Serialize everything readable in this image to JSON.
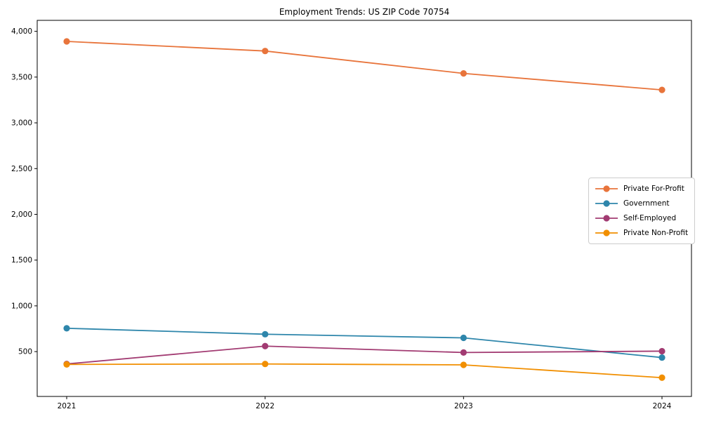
{
  "title": "Employment Trends: US ZIP Code 70754",
  "chart_data": {
    "type": "line",
    "title": "Employment Trends: US ZIP Code 70754",
    "categories": [
      "2021",
      "2022",
      "2023",
      "2024"
    ],
    "series": [
      {
        "name": "Private For-Profit",
        "color": "#E8743B",
        "values": [
          3890,
          3785,
          3540,
          3360
        ]
      },
      {
        "name": "Government",
        "color": "#2E86AB",
        "values": [
          755,
          690,
          650,
          435
        ]
      },
      {
        "name": "Self-Employed",
        "color": "#A23B72",
        "values": [
          365,
          560,
          490,
          505
        ]
      },
      {
        "name": "Private Non-Profit",
        "color": "#F18F01",
        "values": [
          360,
          365,
          355,
          215
        ]
      }
    ],
    "xlabel": "",
    "ylabel": "",
    "ylim": [
      10,
      4120
    ],
    "yticks": [
      500,
      1000,
      1500,
      2000,
      2500,
      3000,
      3500,
      4000
    ],
    "ytick_labels": [
      "500",
      "1,000",
      "1,500",
      "2,000",
      "2,500",
      "3,000",
      "3,500",
      "4,000"
    ],
    "grid": false,
    "marker": "circle",
    "legend_position": "center-right",
    "axis_color": "#000000",
    "text_color": "#000000"
  }
}
